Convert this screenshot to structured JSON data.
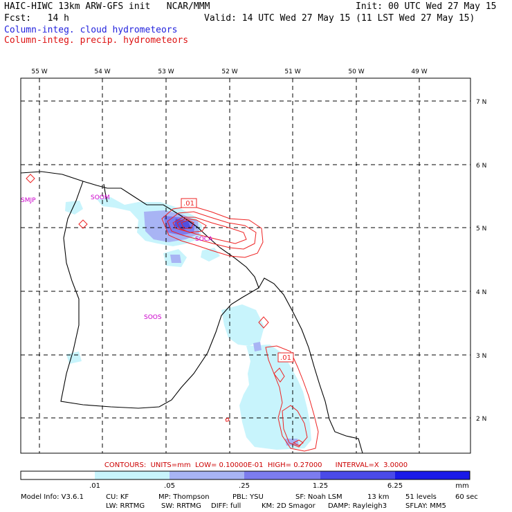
{
  "header": {
    "title": "HAIC-HIWC 13km ARW-GFS init   NCAR/MMM",
    "init": "Init: 00 UTC Wed 27 May 15",
    "fcst": "Fcst:   14 h",
    "valid": "Valid: 14 UTC Wed 27 May 15 (11 LST Wed 27 May 15)",
    "legend_cloud": "Column-integ. cloud hydrometeors",
    "legend_precip": "Column-integ. precip. hydrometeors"
  },
  "map": {
    "lon_labels": [
      "55 W",
      "54 W",
      "53 W",
      "52 W",
      "51 W",
      "50 W",
      "49 W"
    ],
    "lat_labels": [
      "7 N",
      "6 N",
      "5 N",
      "4 N",
      "3 N",
      "2 N"
    ],
    "stations": [
      "SMJP",
      "SOOM",
      "SOCA",
      "SOOS"
    ],
    "contour_labels": [
      ".01",
      ".01"
    ],
    "colors": {
      "cloud_light": "#c8f4fc",
      "cloud_mid": "#a8b4f4",
      "cloud_dark": "#6a6ae6",
      "precip": "#ee2222",
      "station": "#cc00cc"
    }
  },
  "contours_info": "CONTOURS:  UNITS=mm  LOW= 0.10000E-01  HIGH= 0.27000      INTERVAL=X  3.0000",
  "colorbar": {
    "ticks": [
      ".01",
      ".05",
      ".25",
      "1.25",
      "6.25"
    ],
    "unit": "mm",
    "colors": [
      "#ffffff",
      "#c8f4fc",
      "#a8b4f4",
      "#7c7cee",
      "#4a4ae8",
      "#1a1ae8",
      "#0000ee"
    ]
  },
  "footer": {
    "line1": [
      "Model Info: V3.6.1",
      "CU: KF",
      "MP: Thompson",
      "PBL: YSU",
      "SF: Noah LSM",
      "13 km",
      "51 levels",
      "60 sec"
    ],
    "line2": [
      "LW: RRTMG",
      "SW: RRTMG",
      "DIFF: full",
      "KM: 2D Smagor",
      "DAMP: Rayleigh3",
      "SFLAY: MM5"
    ]
  }
}
